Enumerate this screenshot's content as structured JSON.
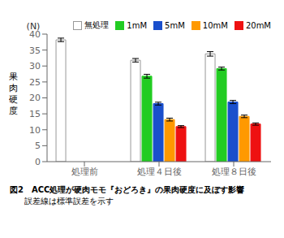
{
  "chart_data": {
    "type": "bar",
    "title": "図2　ACC処理が硬肉モモ『おどろき』の果肉硬度に及ぼす影響",
    "subtitle": "誤差線は標準誤差を示す",
    "ylabel": "果\n肉\n硬\n度",
    "annotations": [
      "(N)"
    ],
    "categories": [
      "処理前",
      "処理４日後",
      "処理８日後"
    ],
    "series": [
      {
        "name": "無処理",
        "color": "#ffffff",
        "values": [
          38.2,
          31.8,
          33.8
        ],
        "errors": [
          0.55,
          0.55,
          0.7
        ]
      },
      {
        "name": "1mM",
        "color": "#22cc22",
        "values": [
          null,
          26.8,
          29.2
        ],
        "errors": [
          null,
          0.6,
          0.45
        ]
      },
      {
        "name": "5mM",
        "color": "#1a4fcc",
        "values": [
          null,
          18.2,
          18.7
        ],
        "errors": [
          null,
          0.45,
          0.5
        ]
      },
      {
        "name": "10mM",
        "color": "#ff9900",
        "values": [
          null,
          13.2,
          14.2
        ],
        "errors": [
          null,
          0.45,
          0.4
        ]
      },
      {
        "name": "20mM",
        "color": "#ee1111",
        "values": [
          null,
          11.0,
          11.8
        ],
        "errors": [
          null,
          0.3,
          0.35
        ]
      }
    ],
    "ylim": [
      0,
      40
    ],
    "yticks": [
      0,
      5,
      10,
      15,
      20,
      25,
      30,
      35,
      40
    ],
    "grid": false,
    "legend": "upper right"
  }
}
